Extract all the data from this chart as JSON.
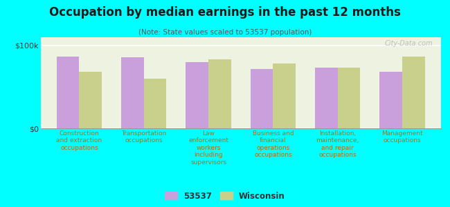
{
  "title": "Occupation by median earnings in the past 12 months",
  "subtitle": "(Note: State values scaled to 53537 population)",
  "categories": [
    "Construction\nand extraction\noccupations",
    "Transportation\noccupations",
    "Law\nenforcement\nworkers\nincluding\nsupervisors",
    "Business and\nfinancial\noperations\noccupations",
    "Installation,\nmaintenance,\nand repair\noccupations",
    "Management\noccupations"
  ],
  "values_53537": [
    87000,
    86000,
    80000,
    72000,
    73000,
    68000
  ],
  "values_wisconsin": [
    68000,
    60000,
    83000,
    78000,
    73000,
    87000
  ],
  "color_53537": "#c9a0dc",
  "color_wisconsin": "#c8d08c",
  "bar_width": 0.35,
  "ylim": [
    0,
    110000
  ],
  "yticks": [
    0,
    100000
  ],
  "ytick_labels": [
    "$0",
    "$100k"
  ],
  "background_color": "#00ffff",
  "plot_bg_color": "#eef2e0",
  "watermark": "City-Data.com",
  "legend_label_53537": "53537",
  "legend_label_wisconsin": "Wisconsin"
}
